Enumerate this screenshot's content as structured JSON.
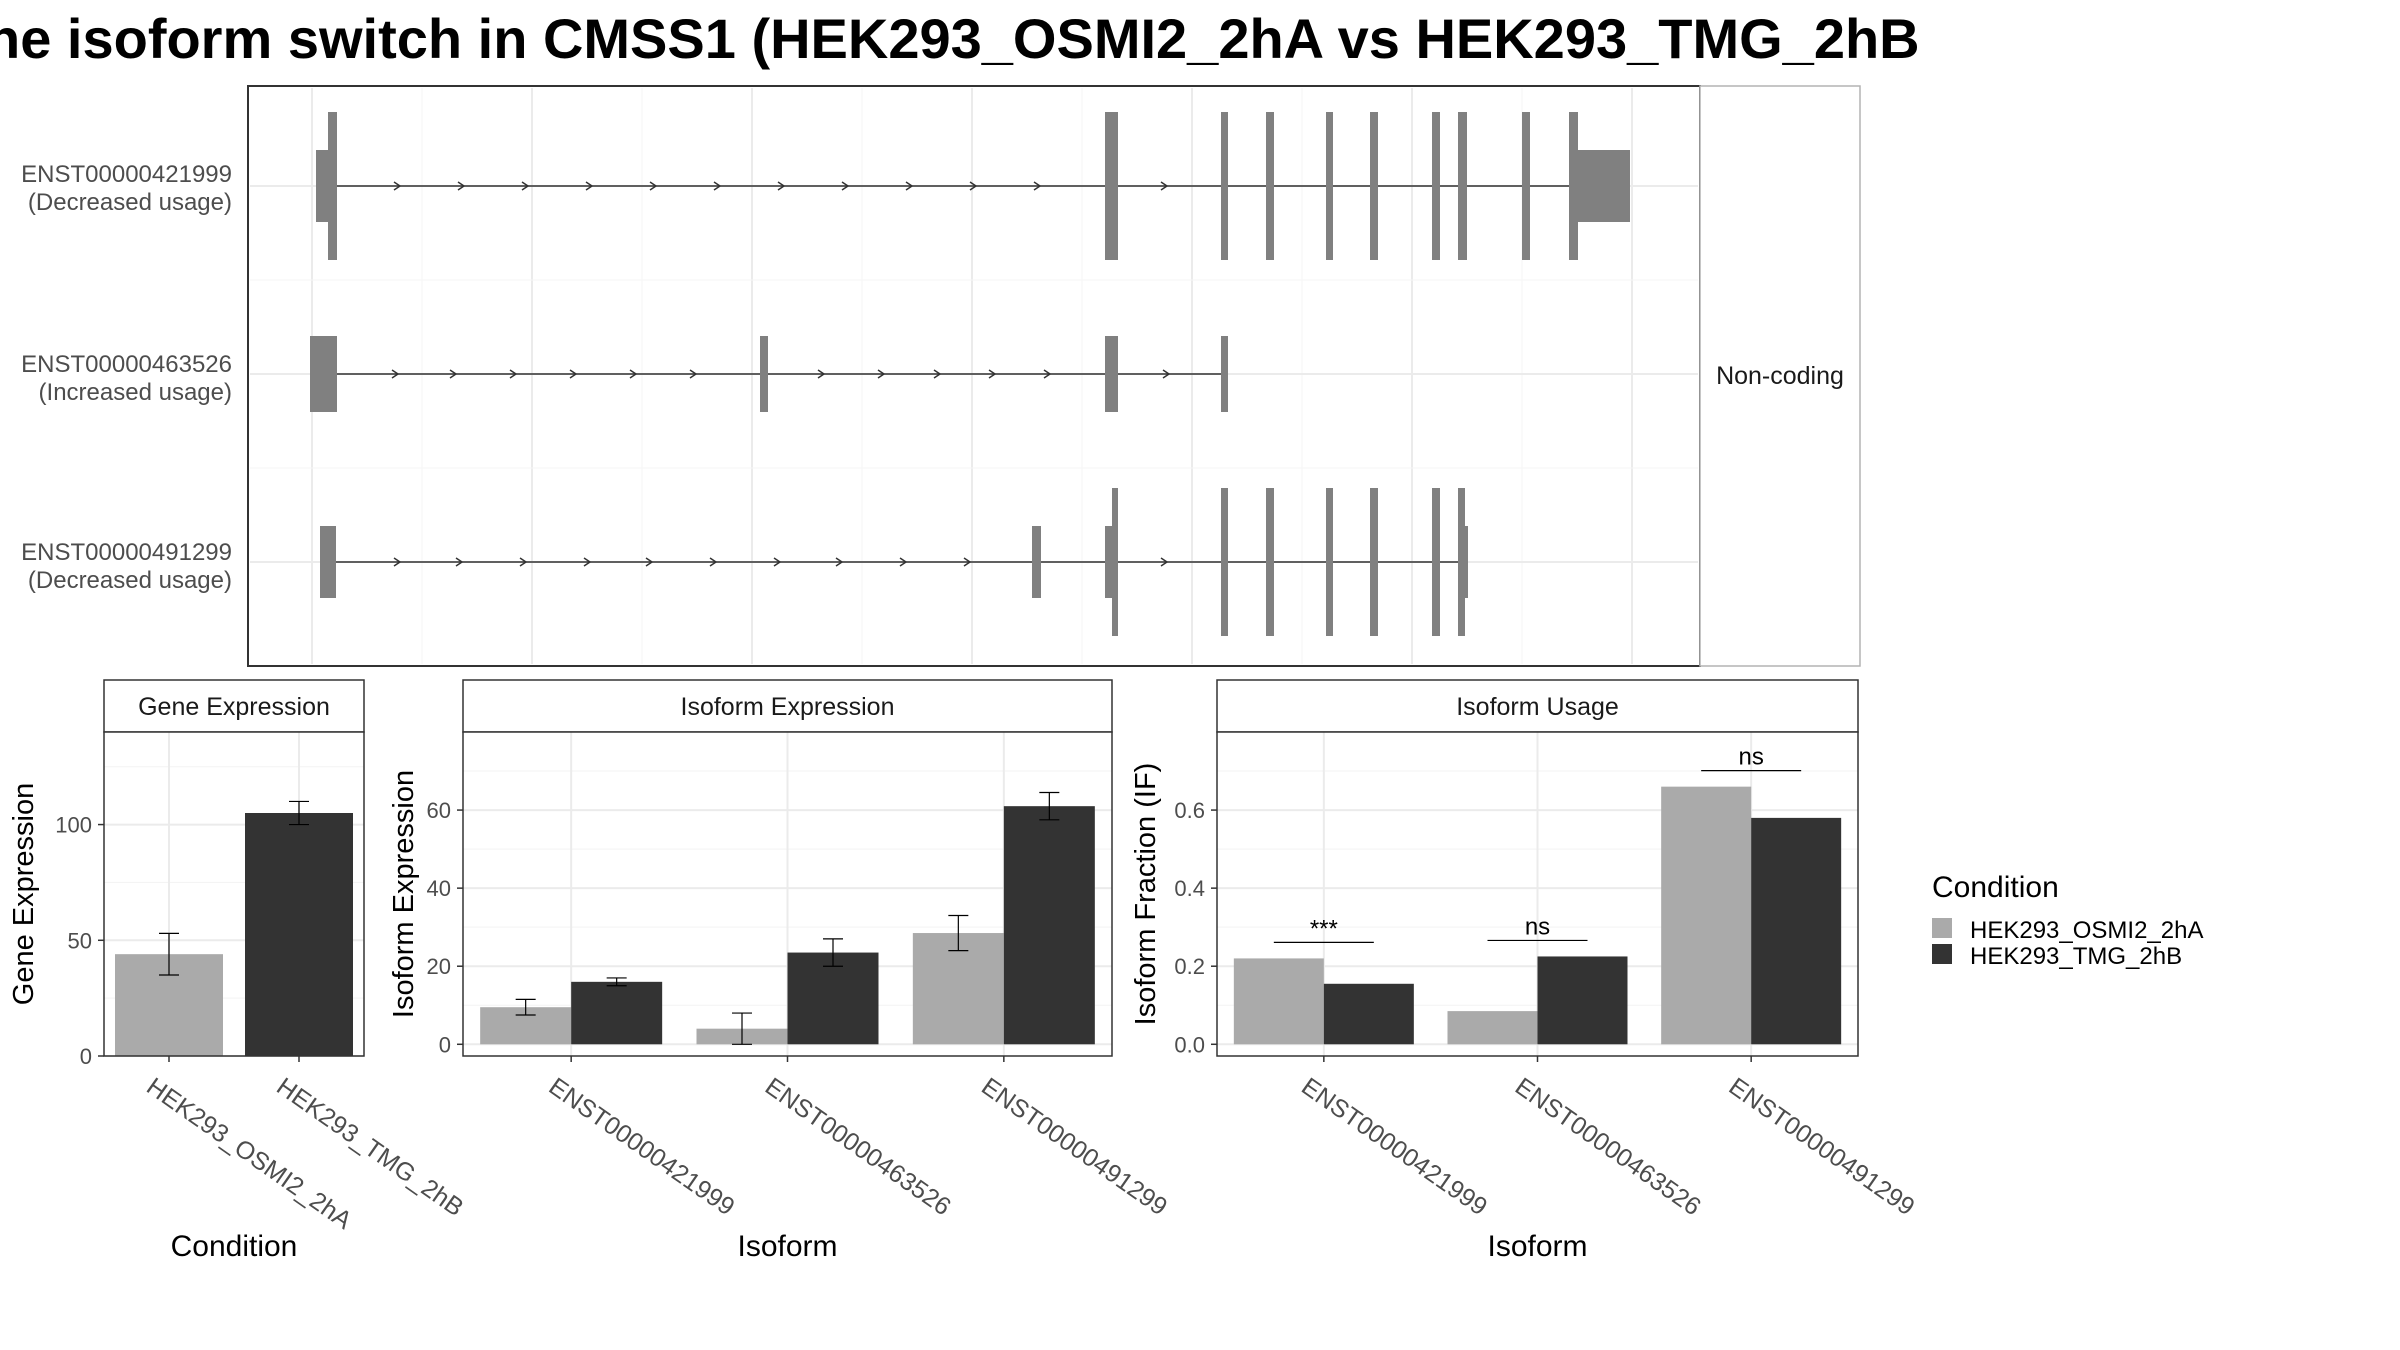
{
  "title": "he isoform switch in CMSS1 (HEK293_OSMI2_2hA vs HEK293_TMG_2hB",
  "colors": {
    "cond_a": "#aaaaaa",
    "cond_b": "#333333",
    "exon": "#808080",
    "grid": "#ebebeb",
    "panel_border": "#333333",
    "strip_border": "#333333",
    "strip_bg": "#ffffff"
  },
  "transcript_panel": {
    "strip_label": "Non-coding",
    "transcripts": [
      {
        "id": "ENST00000421999",
        "status": "(Decreased usage)"
      },
      {
        "id": "ENST00000463526",
        "status": "(Increased usage)"
      },
      {
        "id": "ENST00000491299",
        "status": "(Decreased usage)"
      }
    ]
  },
  "legend": {
    "title": "Condition",
    "items": [
      "HEK293_OSMI2_2hA",
      "HEK293_TMG_2hB"
    ]
  },
  "chart_data": [
    {
      "type": "bar",
      "title": "Gene Expression",
      "xlabel": "Condition",
      "ylabel": "Gene Expression",
      "ylim": [
        0,
        140
      ],
      "yticks": [
        0,
        50,
        100
      ],
      "categories": [
        "HEK293_OSMI2_2hA",
        "HEK293_TMG_2hB"
      ],
      "series": [
        {
          "name": "HEK293_OSMI2_2hA",
          "values": [
            44,
            null
          ],
          "err_low": [
            35,
            null
          ],
          "err_high": [
            53,
            null
          ]
        },
        {
          "name": "HEK293_TMG_2hB",
          "values": [
            null,
            105
          ],
          "err_low": [
            null,
            100
          ],
          "err_high": [
            null,
            110
          ]
        }
      ]
    },
    {
      "type": "bar",
      "title": "Isoform Expression",
      "xlabel": "Isoform",
      "ylabel": "Isoform Expression",
      "ylim": [
        -3,
        80
      ],
      "yticks": [
        0,
        20,
        40,
        60
      ],
      "categories": [
        "ENST00000421999",
        "ENST00000463526",
        "ENST00000491299"
      ],
      "series": [
        {
          "name": "HEK293_OSMI2_2hA",
          "values": [
            9.5,
            4,
            28.5
          ],
          "err_low": [
            7.5,
            0,
            24
          ],
          "err_high": [
            11.5,
            8,
            33
          ]
        },
        {
          "name": "HEK293_TMG_2hB",
          "values": [
            16,
            23.5,
            61
          ],
          "err_low": [
            15,
            20,
            57.5
          ],
          "err_high": [
            17,
            27,
            64.5
          ]
        }
      ]
    },
    {
      "type": "bar",
      "title": "Isoform Usage",
      "xlabel": "Isoform",
      "ylabel": "Isoform Fraction (IF)",
      "ylim": [
        -0.03,
        0.8
      ],
      "yticks": [
        0.0,
        0.2,
        0.4,
        0.6
      ],
      "ytick_labels": [
        "0.0",
        "0.2",
        "0.4",
        "0.6"
      ],
      "categories": [
        "ENST00000421999",
        "ENST00000463526",
        "ENST00000491299"
      ],
      "series": [
        {
          "name": "HEK293_OSMI2_2hA",
          "values": [
            0.22,
            0.085,
            0.66
          ]
        },
        {
          "name": "HEK293_TMG_2hB",
          "values": [
            0.155,
            0.225,
            0.58
          ]
        }
      ],
      "significance": [
        "***",
        "ns",
        "ns"
      ]
    }
  ]
}
